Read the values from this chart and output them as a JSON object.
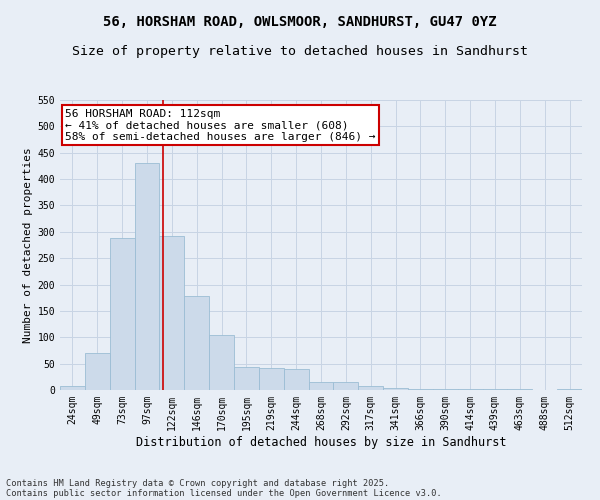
{
  "title": "56, HORSHAM ROAD, OWLSMOOR, SANDHURST, GU47 0YZ",
  "subtitle": "Size of property relative to detached houses in Sandhurst",
  "xlabel": "Distribution of detached houses by size in Sandhurst",
  "ylabel": "Number of detached properties",
  "bar_values": [
    8,
    70,
    288,
    430,
    293,
    178,
    104,
    43,
    41,
    39,
    16,
    16,
    8,
    4,
    1,
    1,
    1,
    2,
    1,
    0,
    2
  ],
  "bar_labels": [
    "24sqm",
    "49sqm",
    "73sqm",
    "97sqm",
    "122sqm",
    "146sqm",
    "170sqm",
    "195sqm",
    "219sqm",
    "244sqm",
    "268sqm",
    "292sqm",
    "317sqm",
    "341sqm",
    "366sqm",
    "390sqm",
    "414sqm",
    "439sqm",
    "463sqm",
    "488sqm",
    "512sqm"
  ],
  "bar_color": "#ccdaea",
  "bar_edge_color": "#9bbdd4",
  "vline_x": 3.65,
  "vline_color": "#cc0000",
  "annotation_text": "56 HORSHAM ROAD: 112sqm\n← 41% of detached houses are smaller (608)\n58% of semi-detached houses are larger (846) →",
  "annotation_box_color": "#ffffff",
  "annotation_box_edge": "#cc0000",
  "ylim": [
    0,
    550
  ],
  "yticks": [
    0,
    50,
    100,
    150,
    200,
    250,
    300,
    350,
    400,
    450,
    500,
    550
  ],
  "grid_color": "#c8d4e4",
  "background_color": "#e8eef6",
  "footer_line1": "Contains HM Land Registry data © Crown copyright and database right 2025.",
  "footer_line2": "Contains public sector information licensed under the Open Government Licence v3.0.",
  "title_fontsize": 10,
  "subtitle_fontsize": 9.5,
  "annotation_fontsize": 8,
  "ylabel_fontsize": 8,
  "xlabel_fontsize": 8.5,
  "tick_fontsize": 7
}
